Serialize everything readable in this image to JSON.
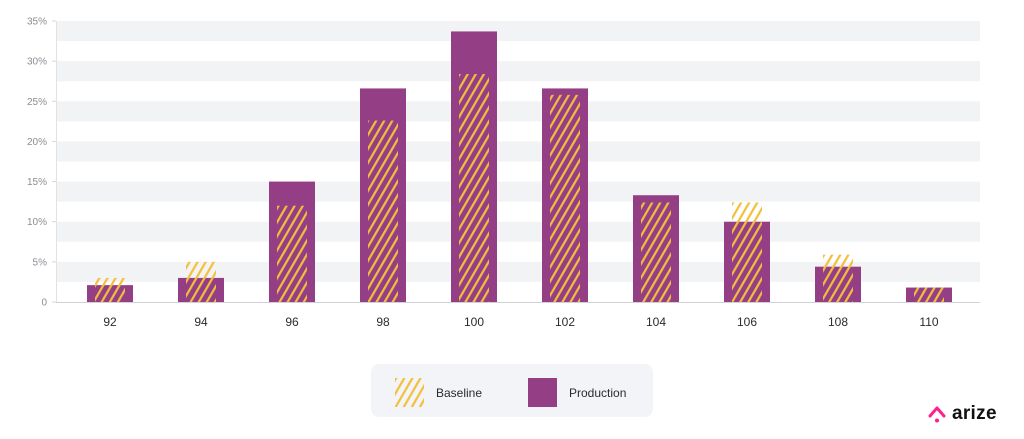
{
  "chart_data": {
    "type": "bar",
    "title": "",
    "xlabel": "",
    "ylabel": "",
    "categories": [
      "92",
      "94",
      "96",
      "98",
      "100",
      "102",
      "104",
      "106",
      "108",
      "110"
    ],
    "series": [
      {
        "name": "Baseline",
        "style": "hatched",
        "color": "#f3bf3a",
        "values": [
          3.0,
          5.0,
          12.0,
          22.6,
          28.4,
          25.8,
          12.4,
          12.4,
          5.9,
          1.8
        ]
      },
      {
        "name": "Production",
        "style": "solid",
        "color": "#933e85",
        "values": [
          2.1,
          3.0,
          15.0,
          26.6,
          33.7,
          26.6,
          13.3,
          10.0,
          4.4,
          1.8
        ]
      }
    ],
    "ylim": [
      0,
      35
    ],
    "yticks": [
      "0",
      "5%",
      "10%",
      "15%",
      "20%",
      "25%",
      "30%",
      "35%"
    ],
    "grid": "alternating horizontal bands",
    "legend_position": "bottom-center"
  },
  "legend": {
    "baseline_label": "Baseline",
    "production_label": "Production"
  },
  "brand": {
    "name": "arize",
    "accent": "#ff1f8e"
  },
  "colors": {
    "production": "#933e85",
    "baseline": "#f3bf3a",
    "band": "#f2f3f5"
  }
}
